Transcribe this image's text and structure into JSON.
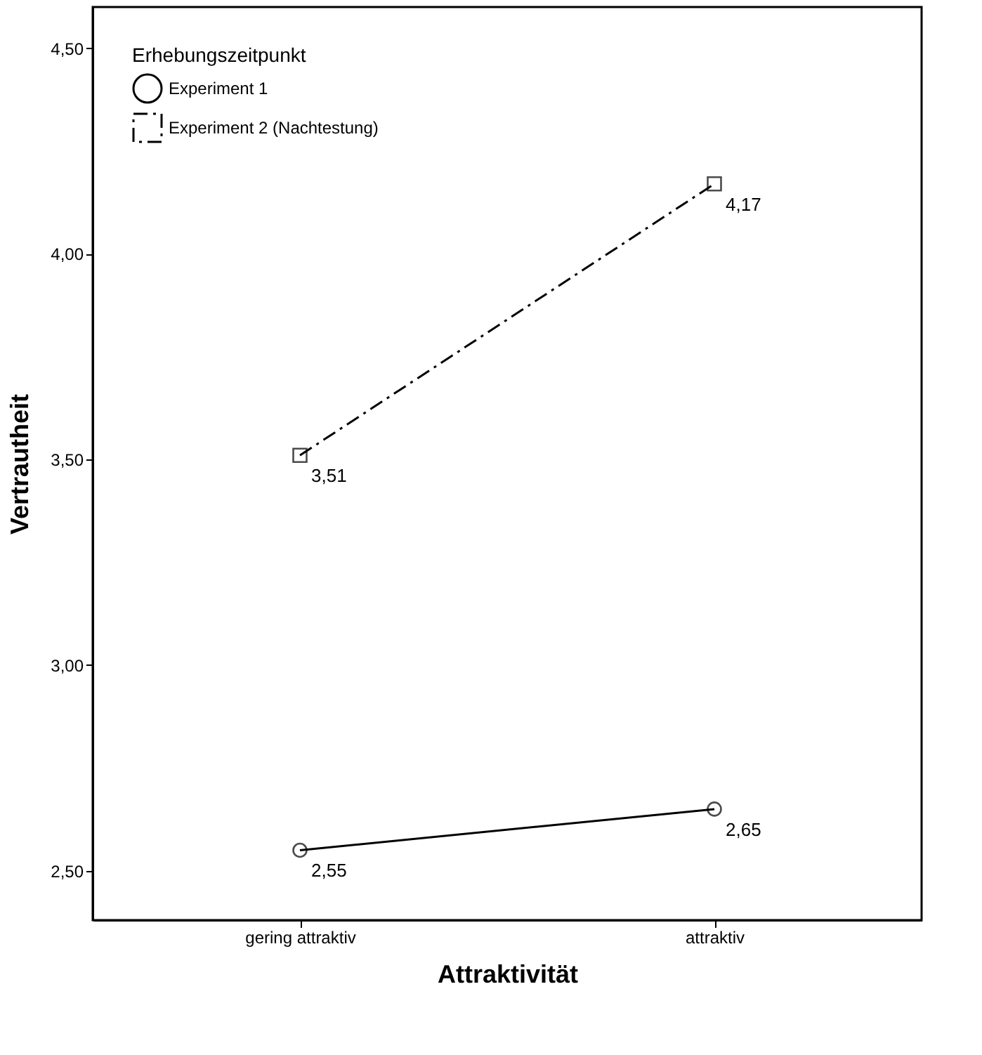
{
  "chart_data": {
    "type": "line",
    "xlabel": "Attraktivität",
    "ylabel": "Vertrautheit",
    "legend_title": "Erhebungszeitpunkt",
    "legend": "top left",
    "categories": [
      "gering attraktiv",
      "attraktiv"
    ],
    "series": [
      {
        "name": "Experiment 1",
        "color": "#000000",
        "values": [
          2.55,
          2.65
        ],
        "marker": "circle",
        "line_style": "solid",
        "value_labels": [
          "2,55",
          "2,65"
        ]
      },
      {
        "name": "Experiment 2 (Nachtestung)",
        "color": "#000000",
        "values": [
          3.51,
          4.17
        ],
        "marker": "square",
        "line_style": "dashed",
        "value_labels": [
          "3,51",
          "4,17"
        ]
      }
    ],
    "ylim": [
      2.38,
      4.6
    ],
    "yticks": [
      {
        "value": 2.5,
        "label": "2,50"
      },
      {
        "value": 3.0,
        "label": "3,00"
      },
      {
        "value": 3.5,
        "label": "3,50"
      },
      {
        "value": 4.0,
        "label": "4,00"
      },
      {
        "value": 4.5,
        "label": "4,50"
      }
    ],
    "grid": false
  }
}
